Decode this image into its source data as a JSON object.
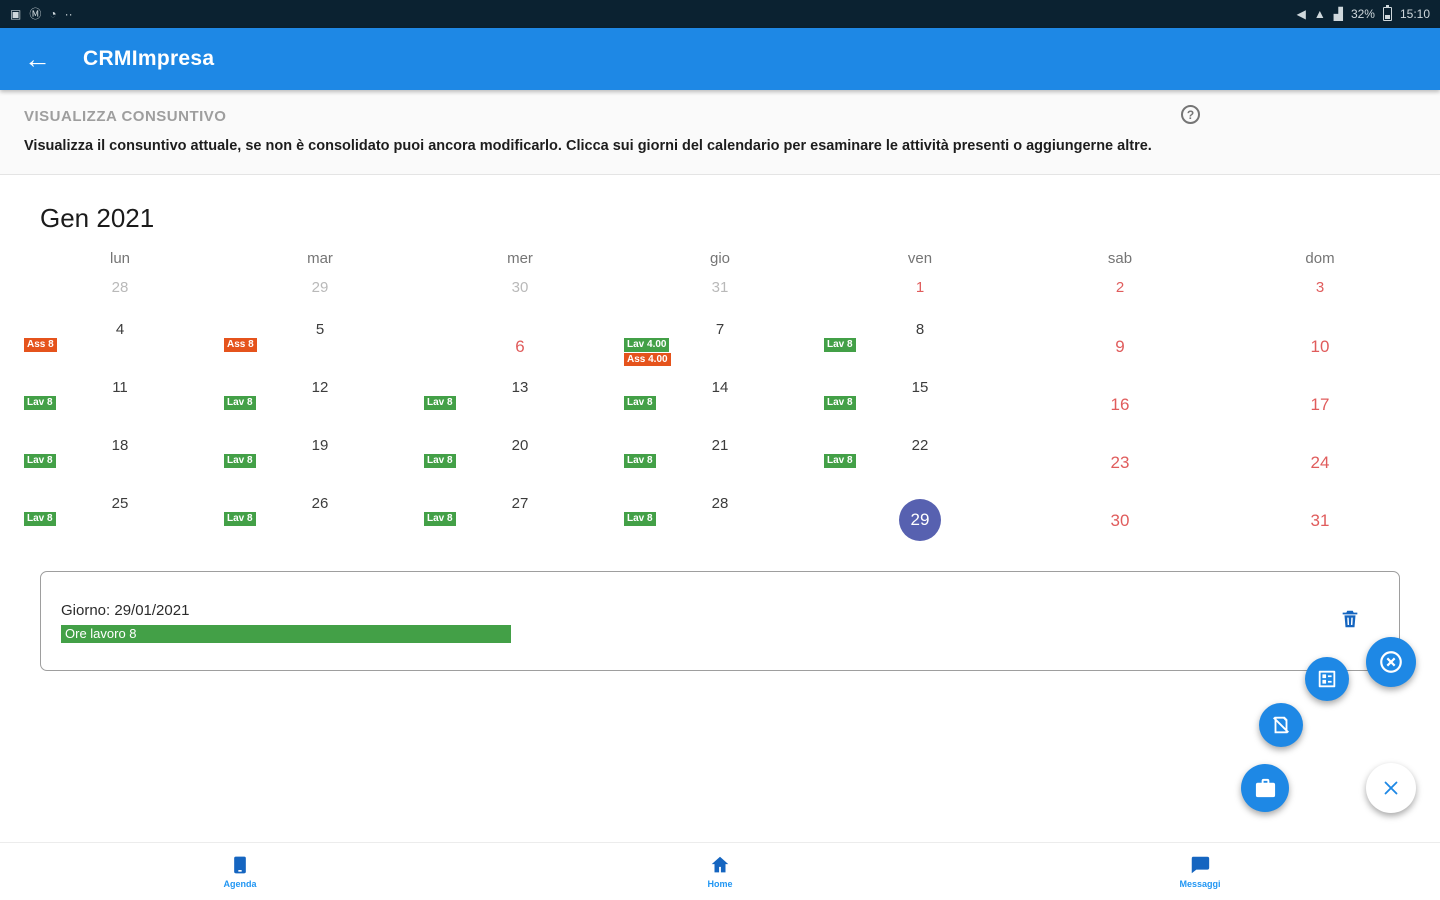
{
  "status_bar": {
    "time": "15:10",
    "battery_percent": "32%"
  },
  "icons": {
    "back_arrow": "←",
    "help": "?",
    "image_glyph": "▣",
    "m_glyph": "Ⓜ",
    "clock_glyph": "◔",
    "overflow_dots": "··",
    "vibrate_glyph": "◀",
    "wifi_glyph": "▲",
    "signal_glyph": "▟"
  },
  "app_bar": {
    "title": "CRMImpresa"
  },
  "header": {
    "title": "VISUALIZZA CONSUNTIVO",
    "description": "Visualizza il consuntivo attuale, se non è consolidato puoi ancora modificarlo. Clicca sui giorni del calendario per esaminare le attività presenti o aggiungerne altre."
  },
  "calendar": {
    "month_title": "Gen 2021",
    "weekdays": [
      "lun",
      "mar",
      "mer",
      "gio",
      "ven",
      "sab",
      "dom"
    ],
    "selected_day": 29,
    "colors": {
      "work_badge": "#43a047",
      "absence_badge": "#e5531c",
      "holiday_text": "#e05c5c",
      "prev_month_text": "#b9b9b9",
      "work_text": "#3c3c3c",
      "selected_bg": "#5761b0",
      "accent": "#1e88e5"
    },
    "weeks": [
      [
        {
          "day": 28,
          "type": "prev"
        },
        {
          "day": 29,
          "type": "prev"
        },
        {
          "day": 30,
          "type": "prev"
        },
        {
          "day": 31,
          "type": "prev"
        },
        {
          "day": 1,
          "type": "holiday"
        },
        {
          "day": 2,
          "type": "holiday"
        },
        {
          "day": 3,
          "type": "holiday"
        }
      ],
      [
        {
          "day": 4,
          "type": "work",
          "badges": [
            {
              "type": "absence",
              "label": "Ass 8"
            }
          ]
        },
        {
          "day": 5,
          "type": "work",
          "badges": [
            {
              "type": "absence",
              "label": "Ass 8"
            }
          ]
        },
        {
          "day": 6,
          "type": "holiday"
        },
        {
          "day": 7,
          "type": "work",
          "badges": [
            {
              "type": "work",
              "label": "Lav 4.00"
            },
            {
              "type": "absence",
              "label": "Ass 4.00"
            }
          ]
        },
        {
          "day": 8,
          "type": "work",
          "badges": [
            {
              "type": "work",
              "label": "Lav 8"
            }
          ]
        },
        {
          "day": 9,
          "type": "holiday"
        },
        {
          "day": 10,
          "type": "holiday"
        }
      ],
      [
        {
          "day": 11,
          "type": "work",
          "badges": [
            {
              "type": "work",
              "label": "Lav 8"
            }
          ]
        },
        {
          "day": 12,
          "type": "work",
          "badges": [
            {
              "type": "work",
              "label": "Lav 8"
            }
          ]
        },
        {
          "day": 13,
          "type": "work",
          "badges": [
            {
              "type": "work",
              "label": "Lav 8"
            }
          ]
        },
        {
          "day": 14,
          "type": "work",
          "badges": [
            {
              "type": "work",
              "label": "Lav 8"
            }
          ]
        },
        {
          "day": 15,
          "type": "work",
          "badges": [
            {
              "type": "work",
              "label": "Lav 8"
            }
          ]
        },
        {
          "day": 16,
          "type": "holiday"
        },
        {
          "day": 17,
          "type": "holiday"
        }
      ],
      [
        {
          "day": 18,
          "type": "work",
          "badges": [
            {
              "type": "work",
              "label": "Lav 8"
            }
          ]
        },
        {
          "day": 19,
          "type": "work",
          "badges": [
            {
              "type": "work",
              "label": "Lav 8"
            }
          ]
        },
        {
          "day": 20,
          "type": "work",
          "badges": [
            {
              "type": "work",
              "label": "Lav 8"
            }
          ]
        },
        {
          "day": 21,
          "type": "work",
          "badges": [
            {
              "type": "work",
              "label": "Lav 8"
            }
          ]
        },
        {
          "day": 22,
          "type": "work",
          "badges": [
            {
              "type": "work",
              "label": "Lav 8"
            }
          ]
        },
        {
          "day": 23,
          "type": "holiday"
        },
        {
          "day": 24,
          "type": "holiday"
        }
      ],
      [
        {
          "day": 25,
          "type": "work",
          "badges": [
            {
              "type": "work",
              "label": "Lav 8"
            }
          ]
        },
        {
          "day": 26,
          "type": "work",
          "badges": [
            {
              "type": "work",
              "label": "Lav 8"
            }
          ]
        },
        {
          "day": 27,
          "type": "work",
          "badges": [
            {
              "type": "work",
              "label": "Lav 8"
            }
          ]
        },
        {
          "day": 28,
          "type": "work",
          "badges": [
            {
              "type": "work",
              "label": "Lav 8"
            }
          ]
        },
        {
          "day": 29,
          "type": "selected"
        },
        {
          "day": 30,
          "type": "holiday"
        },
        {
          "day": 31,
          "type": "holiday"
        }
      ]
    ]
  },
  "detail_panel": {
    "title": "Giorno: 29/01/2021",
    "bar_label": "Ore lavoro 8"
  },
  "bottom_nav": {
    "items": [
      {
        "label": "Agenda"
      },
      {
        "label": "Home"
      },
      {
        "label": "Messaggi"
      }
    ]
  }
}
